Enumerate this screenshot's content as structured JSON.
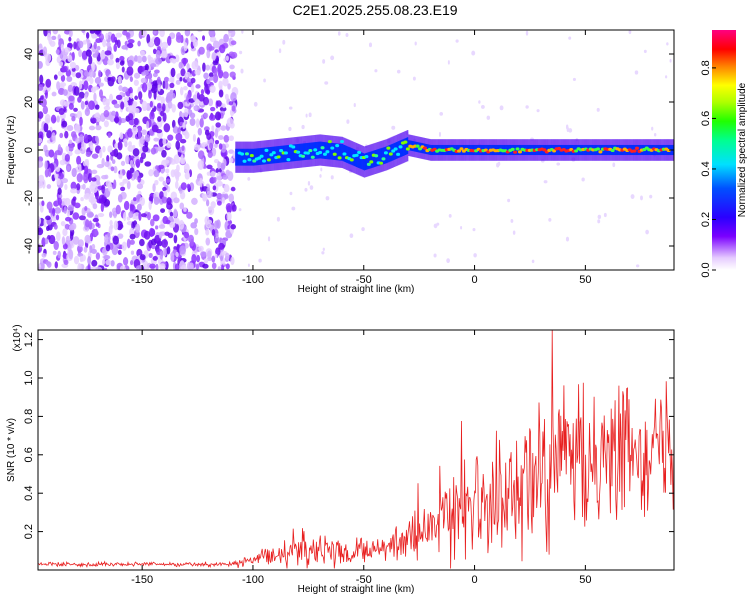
{
  "title": "C2E1.2025.255.08.23.E19",
  "chart_data": [
    {
      "type": "heatmap",
      "name": "spectrogram",
      "xlabel": "Height of straight line (km)",
      "ylabel": "Frequency (Hz)",
      "xlim": [
        -197,
        90
      ],
      "ylim": [
        -50,
        50
      ],
      "xticks": [
        -150,
        -100,
        -50,
        0,
        50
      ],
      "yticks": [
        -40,
        -20,
        0,
        20,
        40
      ],
      "xtick_labels": [
        "-150",
        "-100",
        "-50",
        "0",
        "50"
      ],
      "ytick_labels": [
        "-40",
        "-20",
        "0",
        "20",
        "40"
      ],
      "noise_region_x": [
        -197,
        -108
      ],
      "signal_track": {
        "x": [
          -108,
          -100,
          -90,
          -80,
          -70,
          -60,
          -50,
          -40,
          -35,
          -30,
          -20,
          -10,
          0,
          10,
          20,
          30,
          40,
          50,
          60,
          70,
          80,
          90
        ],
        "freq": [
          -3,
          -3,
          -2,
          -1,
          0,
          -1,
          -5,
          -2,
          0,
          2,
          0,
          0,
          0,
          0,
          0,
          0,
          0,
          0,
          0,
          0,
          0,
          0
        ]
      },
      "colorbar": {
        "label": "Normalized spectral amplitude",
        "range": [
          0,
          0.95
        ],
        "ticks": [
          0.0,
          0.2,
          0.4,
          0.6,
          0.8
        ],
        "tick_labels": [
          "0.0",
          "0.2",
          "0.4",
          "0.6",
          "0.8"
        ]
      }
    },
    {
      "type": "line",
      "name": "snr",
      "xlabel": "Height of straight line (km)",
      "ylabel": "SNR (10 * v/v)",
      "scale_label": "(x10⁴)",
      "xlim": [
        -197,
        90
      ],
      "ylim": [
        0,
        1.25
      ],
      "xticks": [
        -150,
        -100,
        -50,
        0,
        50
      ],
      "yticks": [
        0.2,
        0.4,
        0.6,
        0.8,
        1.0,
        1.2
      ],
      "xtick_labels": [
        "-150",
        "-100",
        "-50",
        "0",
        "50"
      ],
      "ytick_labels": [
        "0.2",
        "0.4",
        "0.6",
        "0.8",
        "1.0",
        "1.2"
      ],
      "color": "#e82020",
      "envelope": {
        "x": [
          -197,
          -110,
          -100,
          -90,
          -80,
          -75,
          -70,
          -60,
          -50,
          -40,
          -30,
          -20,
          -10,
          0,
          10,
          20,
          30,
          40,
          50,
          60,
          70,
          80,
          90
        ],
        "mean": [
          0.03,
          0.03,
          0.05,
          0.08,
          0.12,
          0.11,
          0.09,
          0.08,
          0.09,
          0.11,
          0.15,
          0.22,
          0.3,
          0.35,
          0.4,
          0.45,
          0.48,
          0.55,
          0.55,
          0.6,
          0.62,
          0.65,
          0.68
        ],
        "spread": [
          0.01,
          0.01,
          0.03,
          0.06,
          0.1,
          0.1,
          0.07,
          0.06,
          0.06,
          0.07,
          0.1,
          0.15,
          0.2,
          0.22,
          0.25,
          0.27,
          0.3,
          0.32,
          0.32,
          0.3,
          0.3,
          0.28,
          0.28
        ]
      },
      "peak": {
        "x": 35,
        "y": 1.25
      }
    }
  ]
}
